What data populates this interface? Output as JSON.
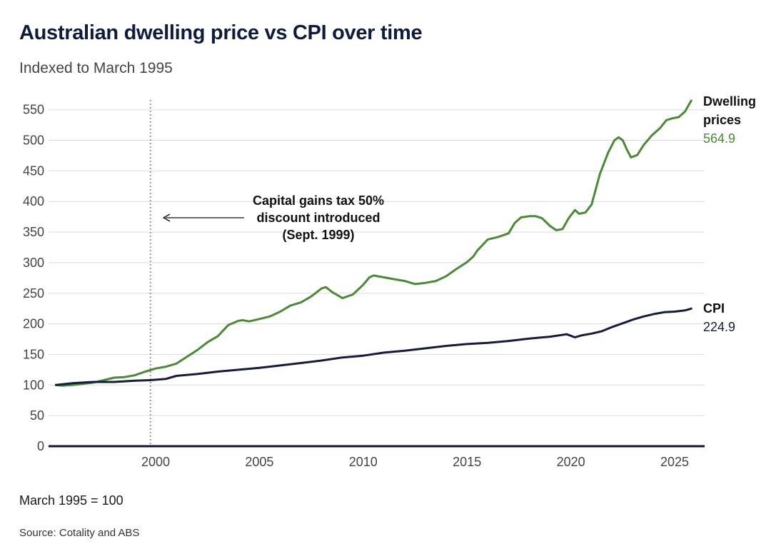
{
  "title": "Australian dwelling price vs CPI over time",
  "subtitle": "Indexed to March 1995",
  "footnote": "March 1995 = 100",
  "source": "Source: Cotality and ABS",
  "annotation": {
    "lines": [
      "Capital gains tax 50%",
      "discount introduced",
      "(Sept. 1999)"
    ],
    "marker_x": 1999.75
  },
  "colors": {
    "dwelling": "#4a8a36",
    "cpi": "#141b3c",
    "grid": "#dcdcdc",
    "axis": "#0d1633",
    "marker": "#9a9a9a"
  },
  "chart_data": {
    "type": "line",
    "title": "Australian dwelling price vs CPI over time",
    "subtitle": "Indexed to March 1995",
    "xlim": [
      1995,
      2026.1
    ],
    "ylim": [
      0,
      580
    ],
    "x_ticks": [
      2000,
      2005,
      2010,
      2015,
      2020,
      2025
    ],
    "y_ticks": [
      0,
      50,
      100,
      150,
      200,
      250,
      300,
      350,
      400,
      450,
      500,
      550
    ],
    "grid": true,
    "series": [
      {
        "name": "Dwelling prices",
        "label_lines": [
          "Dwelling",
          "prices"
        ],
        "end_value": "564.9",
        "color": "#4a8a36",
        "x": [
          1995.2,
          1995.5,
          1996.0,
          1996.5,
          1997.0,
          1997.5,
          1998.0,
          1998.5,
          1999.0,
          1999.5,
          2000.0,
          2000.5,
          2001.0,
          2001.5,
          2002.0,
          2002.5,
          2003.0,
          2003.5,
          2004.0,
          2004.2,
          2004.5,
          2005.0,
          2005.5,
          2006.0,
          2006.5,
          2007.0,
          2007.5,
          2008.0,
          2008.2,
          2008.5,
          2009.0,
          2009.5,
          2010.0,
          2010.3,
          2010.5,
          2011.0,
          2011.5,
          2012.0,
          2012.5,
          2013.0,
          2013.5,
          2014.0,
          2014.5,
          2015.0,
          2015.3,
          2015.5,
          2016.0,
          2016.5,
          2017.0,
          2017.3,
          2017.6,
          2018.0,
          2018.3,
          2018.6,
          2019.0,
          2019.3,
          2019.6,
          2019.9,
          2020.2,
          2020.4,
          2020.7,
          2021.0,
          2021.4,
          2021.8,
          2022.1,
          2022.3,
          2022.5,
          2022.7,
          2022.9,
          2023.2,
          2023.5,
          2023.9,
          2024.3,
          2024.6,
          2024.9,
          2025.2,
          2025.5,
          2025.8
        ],
        "y": [
          100,
          99,
          100,
          102,
          104,
          108,
          112,
          113,
          116,
          122,
          127,
          130,
          135,
          146,
          157,
          170,
          180,
          198,
          205,
          206,
          204,
          208,
          212,
          220,
          230,
          235,
          245,
          258,
          260,
          252,
          242,
          248,
          264,
          276,
          279,
          276,
          273,
          270,
          265,
          267,
          270,
          278,
          290,
          301,
          310,
          320,
          338,
          342,
          348,
          365,
          374,
          376,
          376,
          373,
          360,
          353,
          355,
          373,
          386,
          380,
          382,
          395,
          445,
          480,
          500,
          505,
          500,
          485,
          472,
          476,
          492,
          508,
          520,
          533,
          536,
          538,
          547,
          564.9
        ]
      },
      {
        "name": "CPI",
        "label_lines": [
          "CPI"
        ],
        "end_value": "224.9",
        "color": "#141b3c",
        "x": [
          1995.2,
          1996.0,
          1997.0,
          1998.0,
          1999.0,
          1999.75,
          2000.5,
          2001.0,
          2002.0,
          2003.0,
          2004.0,
          2005.0,
          2006.0,
          2007.0,
          2008.0,
          2009.0,
          2010.0,
          2011.0,
          2012.0,
          2013.0,
          2014.0,
          2015.0,
          2016.0,
          2017.0,
          2018.0,
          2019.0,
          2019.8,
          2020.2,
          2020.5,
          2021.0,
          2021.5,
          2022.0,
          2022.5,
          2023.0,
          2023.5,
          2024.0,
          2024.5,
          2025.0,
          2025.5,
          2025.8
        ],
        "y": [
          100,
          103,
          105,
          105,
          107,
          108,
          110,
          115,
          118,
          122,
          125,
          128,
          132,
          136,
          140,
          145,
          148,
          153,
          156,
          160,
          164,
          167,
          169,
          172,
          176,
          179,
          183,
          178,
          181,
          184,
          188,
          195,
          201,
          207,
          212,
          216,
          219,
          220,
          222,
          224.9
        ]
      }
    ]
  }
}
